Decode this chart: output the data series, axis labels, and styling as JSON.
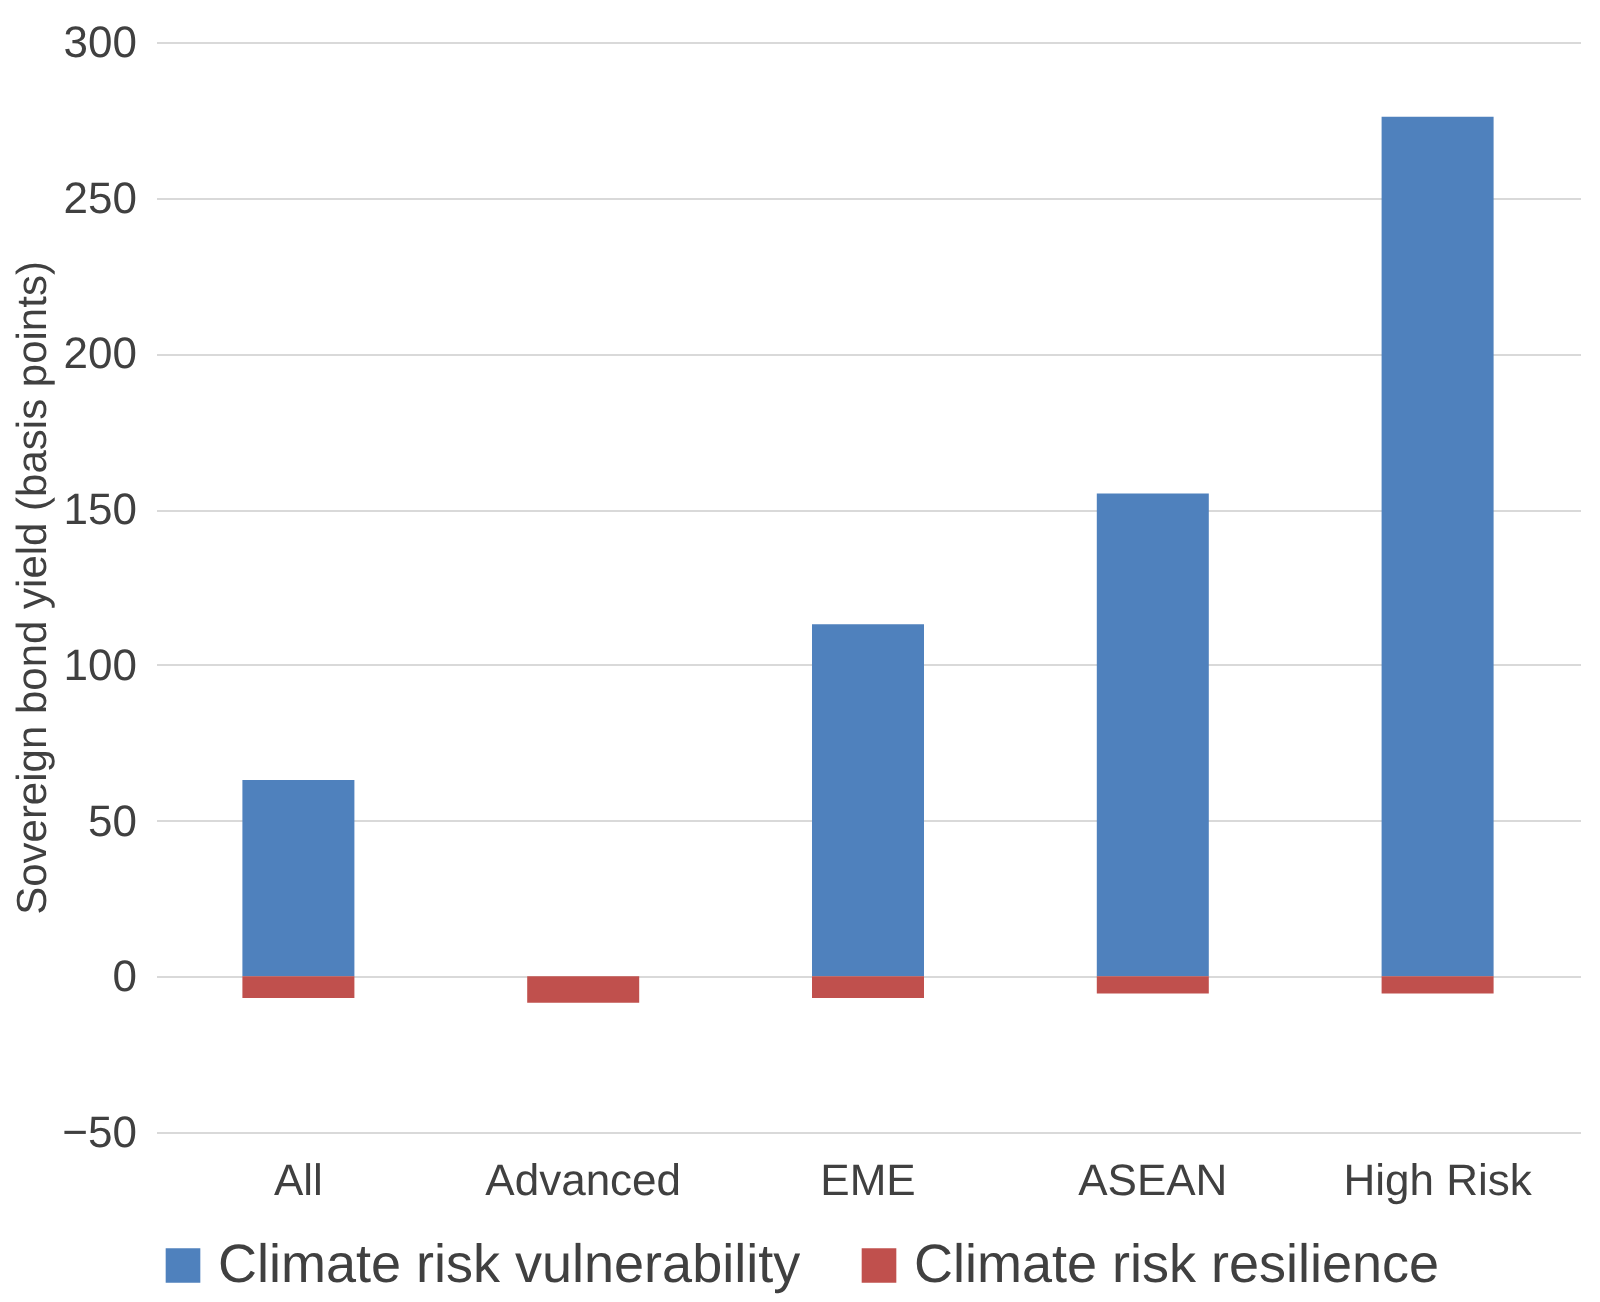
{
  "chart_data": {
    "type": "bar",
    "stacked": true,
    "ylabel": "Sovereign bond yield (basis points)",
    "categories": [
      "All",
      "Advanced",
      "EME",
      "ASEAN",
      "High Risk"
    ],
    "series": [
      {
        "name": "Climate risk vulnerability",
        "color": "#4f81bd",
        "values": [
          63,
          null,
          113,
          155,
          276
        ]
      },
      {
        "name": "Climate risk resilience",
        "color": "#c0504d",
        "values": [
          -7,
          -8.5,
          -7,
          -5.5,
          -5.5
        ]
      }
    ],
    "ylim": [
      -50,
      300
    ],
    "yticks": [
      -50,
      0,
      50,
      100,
      150,
      200,
      250,
      300
    ],
    "grid": "y",
    "legend": "bottom"
  }
}
